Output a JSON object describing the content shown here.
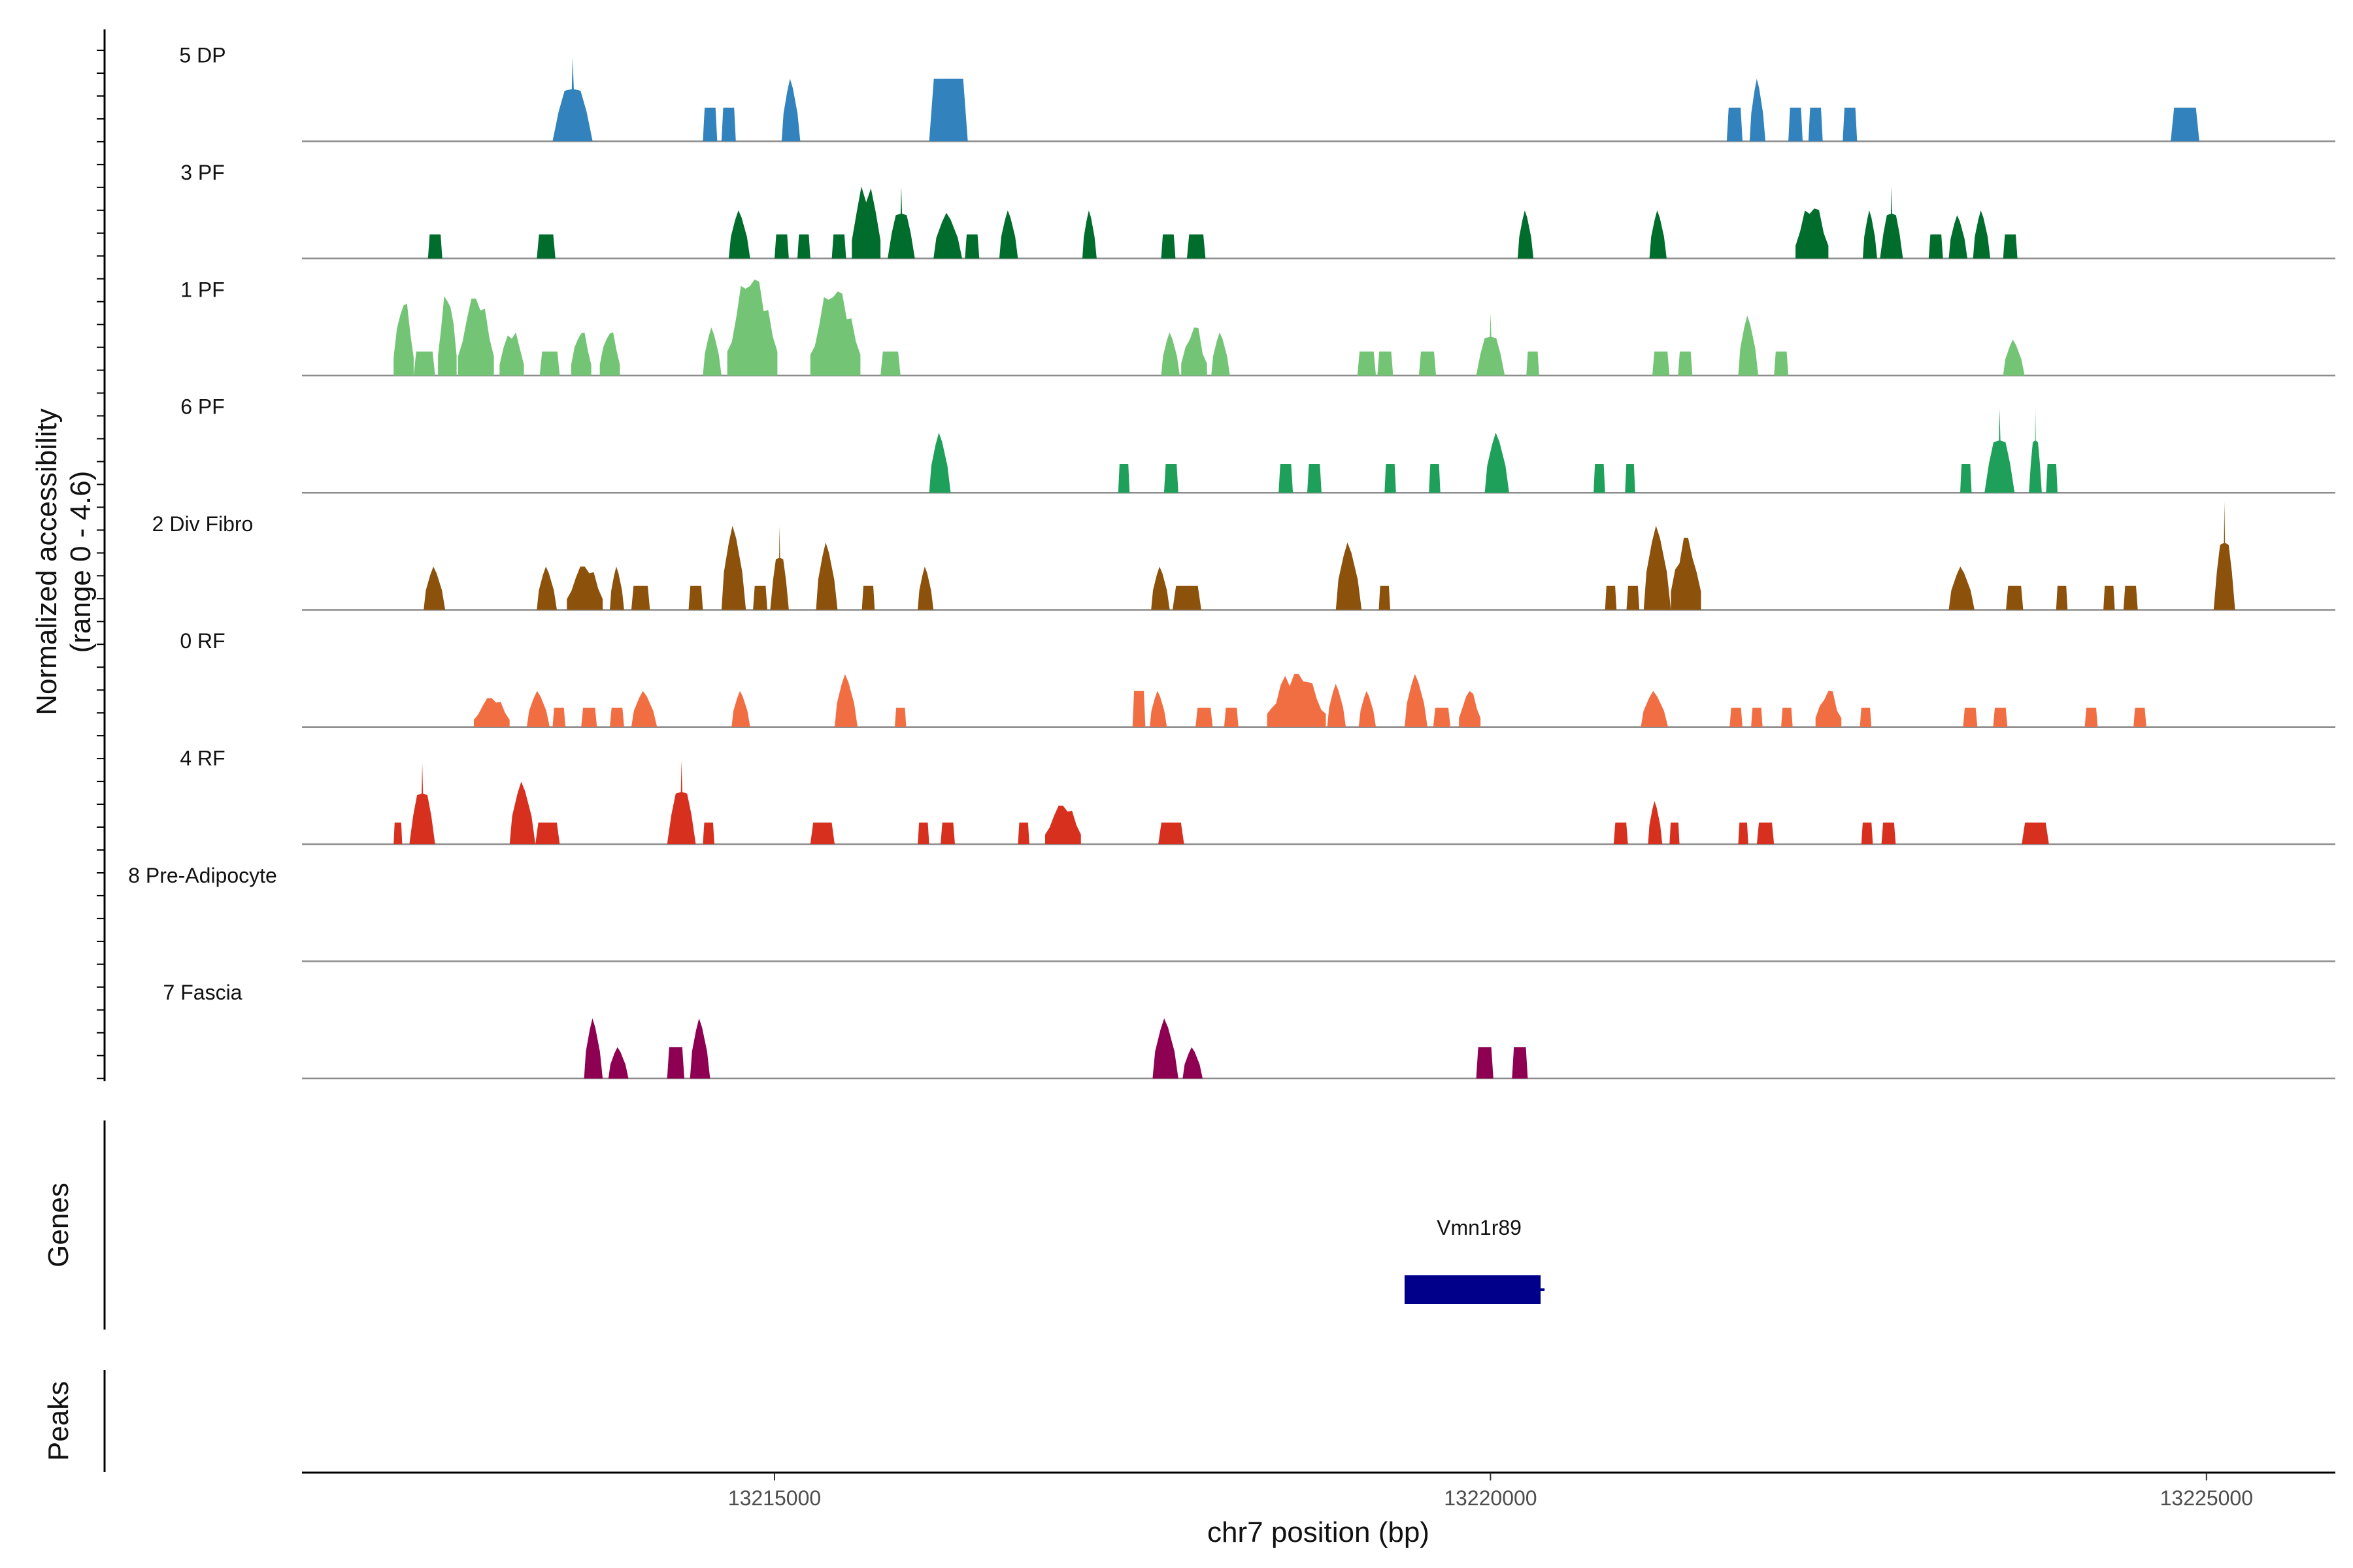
{
  "chart_data": {
    "type": "area",
    "title": "",
    "region": {
      "chrom": "chr7",
      "start": 13211700,
      "end": 13225900
    },
    "xlabel": "chr7 position (bp)",
    "ylabel_line1": "Normalized accessibility",
    "ylabel_line2": "(range 0 - 4.6)",
    "ylim": [
      0,
      4.6
    ],
    "x_ticks": [
      {
        "value": 13215000,
        "label": "13215000"
      },
      {
        "value": 13220000,
        "label": "13220000"
      },
      {
        "value": 13225000,
        "label": "13225000"
      }
    ],
    "series": [
      {
        "name": "5 DP",
        "color": "#3182BD",
        "peaks": [
          [
            13213450,
            13213730,
            3.5,
            "spike"
          ],
          [
            13214500,
            13214600,
            1.4,
            "flat"
          ],
          [
            13214630,
            13214730,
            1.4,
            "flat"
          ],
          [
            13215050,
            13215180,
            2.6,
            "rounded"
          ],
          [
            13216080,
            13216350,
            2.6,
            "flat"
          ],
          [
            13221650,
            13221760,
            1.4,
            "flat"
          ],
          [
            13221810,
            13221920,
            2.6,
            "rounded"
          ],
          [
            13222080,
            13222180,
            1.4,
            "flat"
          ],
          [
            13222220,
            13222320,
            1.4,
            "flat"
          ],
          [
            13222460,
            13222560,
            1.4,
            "flat"
          ],
          [
            13224750,
            13224950,
            1.4,
            "flat"
          ]
        ]
      },
      {
        "name": "3 PF",
        "color": "#006D2C",
        "peaks": [
          [
            13212580,
            13212680,
            1.0,
            "flat"
          ],
          [
            13213340,
            13213470,
            1.0,
            "flat"
          ],
          [
            13214680,
            13214830,
            2.0,
            "rounded"
          ],
          [
            13215000,
            13215100,
            1.0,
            "flat"
          ],
          [
            13215160,
            13215250,
            1.0,
            "flat"
          ],
          [
            13215400,
            13215500,
            1.0,
            "flat"
          ],
          [
            13215540,
            13215740,
            3.0,
            "jagged"
          ],
          [
            13215790,
            13215980,
            3.0,
            "spike"
          ],
          [
            13216110,
            13216310,
            1.9,
            "rounded"
          ],
          [
            13216330,
            13216430,
            1.0,
            "flat"
          ],
          [
            13216570,
            13216700,
            2.0,
            "rounded"
          ],
          [
            13217150,
            13217250,
            2.0,
            "rounded"
          ],
          [
            13217700,
            13217800,
            1.0,
            "flat"
          ],
          [
            13217880,
            13218010,
            1.0,
            "flat"
          ],
          [
            13220190,
            13220300,
            2.0,
            "rounded"
          ],
          [
            13221110,
            13221230,
            2.0,
            "rounded"
          ],
          [
            13222130,
            13222360,
            2.1,
            "jagged"
          ],
          [
            13222600,
            13222700,
            2.0,
            "rounded"
          ],
          [
            13222720,
            13222880,
            3.0,
            "spike"
          ],
          [
            13223060,
            13223160,
            1.0,
            "flat"
          ],
          [
            13223200,
            13223330,
            1.8,
            "rounded"
          ],
          [
            13223370,
            13223490,
            2.0,
            "rounded"
          ],
          [
            13223580,
            13223680,
            1.0,
            "flat"
          ]
        ]
      },
      {
        "name": "1 PF",
        "color": "#74C476",
        "peaks": [
          [
            13212340,
            13212480,
            3.0,
            "jagged"
          ],
          [
            13212480,
            13212630,
            1.0,
            "flat"
          ],
          [
            13212650,
            13212780,
            3.3,
            "jagged"
          ],
          [
            13212790,
            13213040,
            3.2,
            "jagged"
          ],
          [
            13213080,
            13213250,
            1.8,
            "jagged"
          ],
          [
            13213360,
            13213500,
            1.0,
            "flat"
          ],
          [
            13213580,
            13213720,
            1.8,
            "jagged"
          ],
          [
            13213780,
            13213920,
            1.8,
            "jagged"
          ],
          [
            13214500,
            13214630,
            2.0,
            "rounded"
          ],
          [
            13214670,
            13215020,
            4.0,
            "jagged"
          ],
          [
            13215250,
            13215600,
            3.5,
            "jagged"
          ],
          [
            13215740,
            13215880,
            1.0,
            "flat"
          ],
          [
            13217700,
            13217830,
            1.8,
            "rounded"
          ],
          [
            13217840,
            13218020,
            2.0,
            "jagged"
          ],
          [
            13218050,
            13218180,
            1.8,
            "rounded"
          ],
          [
            13219070,
            13219200,
            1.0,
            "flat"
          ],
          [
            13219210,
            13219320,
            1.0,
            "flat"
          ],
          [
            13219500,
            13219620,
            1.0,
            "flat"
          ],
          [
            13219900,
            13220100,
            2.6,
            "spike"
          ],
          [
            13220250,
            13220340,
            1.0,
            "flat"
          ],
          [
            13221130,
            13221250,
            1.0,
            "flat"
          ],
          [
            13221310,
            13221410,
            1.0,
            "flat"
          ],
          [
            13221730,
            13221870,
            2.5,
            "rounded"
          ],
          [
            13221980,
            13222080,
            1.0,
            "flat"
          ],
          [
            13223580,
            13223730,
            1.5,
            "rounded"
          ]
        ]
      },
      {
        "name": "6 PF",
        "color": "#1FA05A",
        "peaks": [
          [
            13216080,
            13216230,
            2.5,
            "rounded"
          ],
          [
            13217400,
            13217480,
            1.2,
            "flat"
          ],
          [
            13217720,
            13217820,
            1.2,
            "flat"
          ],
          [
            13218520,
            13218620,
            1.2,
            "flat"
          ],
          [
            13218720,
            13218820,
            1.2,
            "flat"
          ],
          [
            13219260,
            13219340,
            1.2,
            "flat"
          ],
          [
            13219570,
            13219650,
            1.2,
            "flat"
          ],
          [
            13219960,
            13220130,
            2.5,
            "rounded"
          ],
          [
            13220720,
            13220800,
            1.2,
            "flat"
          ],
          [
            13220940,
            13221010,
            1.2,
            "flat"
          ],
          [
            13223280,
            13223360,
            1.2,
            "flat"
          ],
          [
            13223450,
            13223660,
            3.5,
            "spike"
          ],
          [
            13223760,
            13223850,
            3.5,
            "spike"
          ],
          [
            13223880,
            13223960,
            1.2,
            "flat"
          ]
        ]
      },
      {
        "name": "2 Div Fibro",
        "color": "#8C510A",
        "peaks": [
          [
            13212550,
            13212700,
            1.8,
            "rounded"
          ],
          [
            13213340,
            13213480,
            1.8,
            "rounded"
          ],
          [
            13213550,
            13213800,
            1.8,
            "jagged"
          ],
          [
            13213850,
            13213950,
            1.8,
            "rounded"
          ],
          [
            13214000,
            13214130,
            1.0,
            "flat"
          ],
          [
            13214400,
            13214500,
            1.0,
            "flat"
          ],
          [
            13214630,
            13214800,
            3.5,
            "rounded"
          ],
          [
            13214850,
            13214950,
            1.0,
            "flat"
          ],
          [
            13214970,
            13215100,
            3.5,
            "spike"
          ],
          [
            13215290,
            13215440,
            2.8,
            "rounded"
          ],
          [
            13215610,
            13215700,
            1.0,
            "flat"
          ],
          [
            13216000,
            13216110,
            1.8,
            "rounded"
          ],
          [
            13217630,
            13217760,
            1.8,
            "rounded"
          ],
          [
            13217780,
            13217980,
            1.0,
            "flat"
          ],
          [
            13218920,
            13219100,
            2.8,
            "rounded"
          ],
          [
            13219220,
            13219300,
            1.0,
            "flat"
          ],
          [
            13220800,
            13220880,
            1.0,
            "flat"
          ],
          [
            13220950,
            13221040,
            1.0,
            "flat"
          ],
          [
            13221070,
            13221260,
            3.5,
            "rounded"
          ],
          [
            13221260,
            13221470,
            3.0,
            "jagged"
          ],
          [
            13223200,
            13223380,
            1.8,
            "rounded"
          ],
          [
            13223600,
            13223720,
            1.0,
            "flat"
          ],
          [
            13223950,
            13224030,
            1.0,
            "flat"
          ],
          [
            13224280,
            13224360,
            1.0,
            "flat"
          ],
          [
            13224420,
            13224520,
            1.0,
            "flat"
          ],
          [
            13225050,
            13225200,
            4.5,
            "spike"
          ]
        ]
      },
      {
        "name": "0 RF",
        "color": "#F16E43",
        "peaks": [
          [
            13212900,
            13213150,
            1.2,
            "jagged"
          ],
          [
            13213270,
            13213430,
            1.5,
            "rounded"
          ],
          [
            13213450,
            13213540,
            0.8,
            "flat"
          ],
          [
            13213650,
            13213760,
            0.8,
            "flat"
          ],
          [
            13213850,
            13213950,
            0.8,
            "flat"
          ],
          [
            13214000,
            13214180,
            1.5,
            "rounded"
          ],
          [
            13214700,
            13214830,
            1.5,
            "rounded"
          ],
          [
            13215420,
            13215580,
            2.2,
            "rounded"
          ],
          [
            13215840,
            13215920,
            0.8,
            "flat"
          ],
          [
            13217500,
            13217590,
            1.5,
            "flat"
          ],
          [
            13217620,
            13217740,
            1.5,
            "rounded"
          ],
          [
            13217940,
            13218060,
            0.8,
            "flat"
          ],
          [
            13218140,
            13218240,
            0.8,
            "flat"
          ],
          [
            13218440,
            13218850,
            2.2,
            "jagged"
          ],
          [
            13218860,
            13218990,
            1.8,
            "rounded"
          ],
          [
            13219080,
            13219200,
            1.5,
            "rounded"
          ],
          [
            13219400,
            13219560,
            2.2,
            "rounded"
          ],
          [
            13219600,
            13219720,
            0.8,
            "flat"
          ],
          [
            13219780,
            13219930,
            1.5,
            "jagged"
          ],
          [
            13221050,
            13221240,
            1.5,
            "rounded"
          ],
          [
            13221670,
            13221760,
            0.8,
            "flat"
          ],
          [
            13221820,
            13221900,
            0.8,
            "flat"
          ],
          [
            13222030,
            13222110,
            0.8,
            "flat"
          ],
          [
            13222270,
            13222450,
            1.5,
            "jagged"
          ],
          [
            13222580,
            13222660,
            0.8,
            "flat"
          ],
          [
            13223300,
            13223400,
            0.8,
            "flat"
          ],
          [
            13223510,
            13223610,
            0.8,
            "flat"
          ],
          [
            13224150,
            13224240,
            0.8,
            "flat"
          ],
          [
            13224490,
            13224580,
            0.8,
            "flat"
          ]
        ]
      },
      {
        "name": "4 RF",
        "color": "#D7301F",
        "peaks": [
          [
            13212340,
            13212400,
            0.9,
            "flat"
          ],
          [
            13212450,
            13212630,
            3.4,
            "spike"
          ],
          [
            13213150,
            13213330,
            2.6,
            "rounded"
          ],
          [
            13213330,
            13213500,
            0.9,
            "flat"
          ],
          [
            13214250,
            13214450,
            3.5,
            "spike"
          ],
          [
            13214500,
            13214580,
            0.9,
            "flat"
          ],
          [
            13215250,
            13215420,
            0.9,
            "flat"
          ],
          [
            13216000,
            13216080,
            0.9,
            "flat"
          ],
          [
            13216160,
            13216260,
            0.9,
            "flat"
          ],
          [
            13216700,
            13216780,
            0.9,
            "flat"
          ],
          [
            13216890,
            13217140,
            1.6,
            "jagged"
          ],
          [
            13217680,
            13217860,
            0.9,
            "flat"
          ],
          [
            13220860,
            13220960,
            0.9,
            "flat"
          ],
          [
            13221100,
            13221200,
            1.8,
            "rounded"
          ],
          [
            13221250,
            13221320,
            0.9,
            "flat"
          ],
          [
            13221730,
            13221800,
            0.9,
            "flat"
          ],
          [
            13221860,
            13221980,
            0.9,
            "flat"
          ],
          [
            13222590,
            13222670,
            0.9,
            "flat"
          ],
          [
            13222730,
            13222830,
            0.9,
            "flat"
          ],
          [
            13223710,
            13223900,
            0.9,
            "flat"
          ]
        ]
      },
      {
        "name": "8 Pre-Adipocyte",
        "color": "#7F7F7F",
        "peaks": []
      },
      {
        "name": "7 Fascia",
        "color": "#8E0152",
        "peaks": [
          [
            13213670,
            13213800,
            2.5,
            "rounded"
          ],
          [
            13213840,
            13213980,
            1.3,
            "rounded"
          ],
          [
            13214250,
            13214370,
            1.3,
            "flat"
          ],
          [
            13214410,
            13214550,
            2.5,
            "rounded"
          ],
          [
            13217640,
            13217820,
            2.5,
            "rounded"
          ],
          [
            13217850,
            13217990,
            1.3,
            "rounded"
          ],
          [
            13219900,
            13220020,
            1.3,
            "flat"
          ],
          [
            13220150,
            13220260,
            1.3,
            "flat"
          ]
        ]
      }
    ],
    "genes": {
      "track_label": "Genes",
      "items": [
        {
          "name": "Vmn1r89",
          "start": 13219400,
          "end": 13220350,
          "strand": "+",
          "color": "#00008B"
        }
      ]
    },
    "peaks_track": {
      "track_label": "Peaks"
    }
  }
}
